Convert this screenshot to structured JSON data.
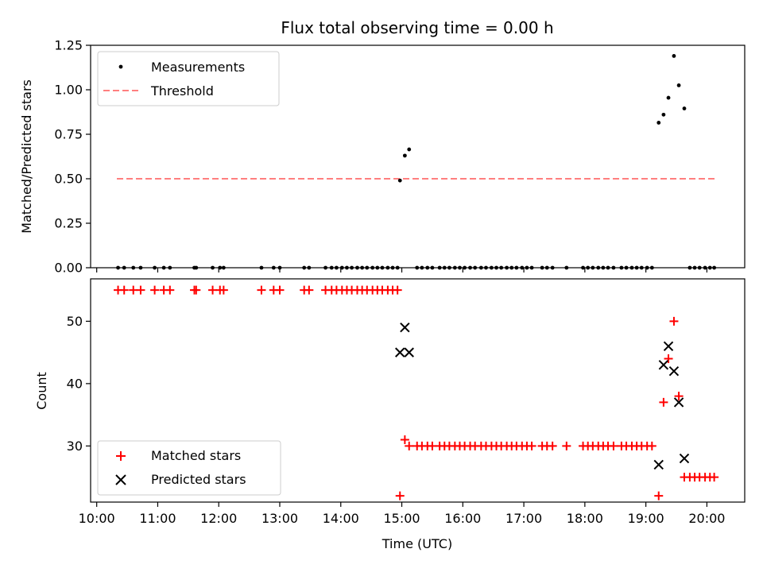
{
  "colors": {
    "measurement": "#000000",
    "threshold": "#ff7f7f",
    "matched": "#ff0000",
    "predicted": "#000000",
    "axis": "#000000",
    "legend_border": "#cccccc"
  },
  "chart_data": [
    {
      "id": "ratio",
      "type": "scatter",
      "title": "Flux total observing time = 0.00 h",
      "xlabel": "",
      "ylabel": "Matched/Predicted stars",
      "x_unit": "hours UTC",
      "xlim": [
        9.9,
        20.62
      ],
      "ylim": [
        0,
        1.25
      ],
      "x_ticks": [
        10,
        11,
        12,
        13,
        14,
        15,
        16,
        17,
        18,
        19,
        20
      ],
      "y_ticks": [
        0.0,
        0.25,
        0.5,
        0.75,
        1.0,
        1.25
      ],
      "y_tick_labels": [
        "0.00",
        "0.25",
        "0.50",
        "0.75",
        "1.00",
        "1.25"
      ],
      "legend": {
        "placement": "upper-left",
        "entries": [
          "Measurements",
          "Threshold"
        ]
      },
      "threshold": {
        "name": "Threshold",
        "y": 0.5,
        "x_range": [
          10.33,
          20.13
        ]
      },
      "series": [
        {
          "name": "Measurements",
          "points": [
            [
              10.35,
              0
            ],
            [
              10.45,
              0
            ],
            [
              10.6,
              0
            ],
            [
              10.72,
              0
            ],
            [
              10.95,
              0
            ],
            [
              11.1,
              0
            ],
            [
              11.2,
              0
            ],
            [
              11.6,
              0
            ],
            [
              11.63,
              0
            ],
            [
              11.9,
              0
            ],
            [
              12.02,
              0
            ],
            [
              12.08,
              0
            ],
            [
              12.7,
              0
            ],
            [
              12.9,
              0
            ],
            [
              13.0,
              0
            ],
            [
              13.4,
              0
            ],
            [
              13.48,
              0
            ],
            [
              13.75,
              0
            ],
            [
              13.85,
              0
            ],
            [
              13.93,
              0
            ],
            [
              14.02,
              0
            ],
            [
              14.1,
              0
            ],
            [
              14.18,
              0
            ],
            [
              14.27,
              0
            ],
            [
              14.35,
              0
            ],
            [
              14.43,
              0
            ],
            [
              14.52,
              0
            ],
            [
              14.6,
              0
            ],
            [
              14.68,
              0
            ],
            [
              14.77,
              0
            ],
            [
              14.85,
              0
            ],
            [
              14.93,
              0
            ],
            [
              14.97,
              0.49
            ],
            [
              15.05,
              0.63
            ],
            [
              15.12,
              0.665
            ],
            [
              15.25,
              0
            ],
            [
              15.33,
              0
            ],
            [
              15.42,
              0
            ],
            [
              15.5,
              0
            ],
            [
              15.62,
              0
            ],
            [
              15.7,
              0
            ],
            [
              15.78,
              0
            ],
            [
              15.87,
              0
            ],
            [
              15.95,
              0
            ],
            [
              16.03,
              0
            ],
            [
              16.12,
              0
            ],
            [
              16.2,
              0
            ],
            [
              16.3,
              0
            ],
            [
              16.38,
              0
            ],
            [
              16.47,
              0
            ],
            [
              16.55,
              0
            ],
            [
              16.63,
              0
            ],
            [
              16.72,
              0
            ],
            [
              16.8,
              0
            ],
            [
              16.88,
              0
            ],
            [
              16.97,
              0
            ],
            [
              17.05,
              0
            ],
            [
              17.13,
              0
            ],
            [
              17.3,
              0
            ],
            [
              17.38,
              0
            ],
            [
              17.47,
              0
            ],
            [
              17.7,
              0
            ],
            [
              17.97,
              0
            ],
            [
              18.05,
              0
            ],
            [
              18.13,
              0
            ],
            [
              18.22,
              0
            ],
            [
              18.3,
              0
            ],
            [
              18.38,
              0
            ],
            [
              18.47,
              0
            ],
            [
              18.6,
              0
            ],
            [
              18.68,
              0
            ],
            [
              18.77,
              0
            ],
            [
              18.85,
              0
            ],
            [
              18.93,
              0
            ],
            [
              19.02,
              0
            ],
            [
              19.1,
              0
            ],
            [
              19.21,
              0.815
            ],
            [
              19.29,
              0.86
            ],
            [
              19.37,
              0.955
            ],
            [
              19.46,
              1.19
            ],
            [
              19.54,
              1.025
            ],
            [
              19.63,
              0.895
            ],
            [
              19.72,
              0
            ],
            [
              19.8,
              0
            ],
            [
              19.88,
              0
            ],
            [
              19.97,
              0
            ],
            [
              20.05,
              0
            ],
            [
              20.12,
              0
            ]
          ]
        }
      ]
    },
    {
      "id": "counts",
      "type": "scatter",
      "title": "",
      "xlabel": "Time (UTC)",
      "ylabel": "Count",
      "x_unit": "hours UTC",
      "xlim": [
        9.9,
        20.62
      ],
      "ylim": [
        21,
        56.8
      ],
      "x_ticks": [
        10,
        11,
        12,
        13,
        14,
        15,
        16,
        17,
        18,
        19,
        20
      ],
      "x_tick_labels": [
        "10:00",
        "11:00",
        "12:00",
        "13:00",
        "14:00",
        "15:00",
        "16:00",
        "17:00",
        "18:00",
        "19:00",
        "20:00"
      ],
      "y_ticks": [
        30,
        40,
        50
      ],
      "y_tick_labels": [
        "30",
        "40",
        "50"
      ],
      "legend": {
        "placement": "lower-left",
        "entries": [
          "Matched stars",
          "Predicted stars"
        ]
      },
      "series": [
        {
          "name": "Matched stars",
          "marker": "plus",
          "points": [
            [
              10.35,
              55
            ],
            [
              10.45,
              55
            ],
            [
              10.6,
              55
            ],
            [
              10.72,
              55
            ],
            [
              10.95,
              55
            ],
            [
              11.1,
              55
            ],
            [
              11.2,
              55
            ],
            [
              11.6,
              55
            ],
            [
              11.63,
              55
            ],
            [
              11.9,
              55
            ],
            [
              12.02,
              55
            ],
            [
              12.08,
              55
            ],
            [
              12.7,
              55
            ],
            [
              12.9,
              55
            ],
            [
              13.0,
              55
            ],
            [
              13.4,
              55
            ],
            [
              13.48,
              55
            ],
            [
              13.75,
              55
            ],
            [
              13.85,
              55
            ],
            [
              13.93,
              55
            ],
            [
              14.02,
              55
            ],
            [
              14.1,
              55
            ],
            [
              14.18,
              55
            ],
            [
              14.27,
              55
            ],
            [
              14.35,
              55
            ],
            [
              14.43,
              55
            ],
            [
              14.52,
              55
            ],
            [
              14.6,
              55
            ],
            [
              14.68,
              55
            ],
            [
              14.77,
              55
            ],
            [
              14.85,
              55
            ],
            [
              14.93,
              55
            ],
            [
              14.97,
              22
            ],
            [
              15.05,
              31
            ],
            [
              15.12,
              30
            ],
            [
              15.25,
              30
            ],
            [
              15.33,
              30
            ],
            [
              15.42,
              30
            ],
            [
              15.5,
              30
            ],
            [
              15.62,
              30
            ],
            [
              15.7,
              30
            ],
            [
              15.78,
              30
            ],
            [
              15.87,
              30
            ],
            [
              15.95,
              30
            ],
            [
              16.03,
              30
            ],
            [
              16.12,
              30
            ],
            [
              16.2,
              30
            ],
            [
              16.3,
              30
            ],
            [
              16.38,
              30
            ],
            [
              16.47,
              30
            ],
            [
              16.55,
              30
            ],
            [
              16.63,
              30
            ],
            [
              16.72,
              30
            ],
            [
              16.8,
              30
            ],
            [
              16.88,
              30
            ],
            [
              16.97,
              30
            ],
            [
              17.05,
              30
            ],
            [
              17.13,
              30
            ],
            [
              17.3,
              30
            ],
            [
              17.38,
              30
            ],
            [
              17.47,
              30
            ],
            [
              17.7,
              30
            ],
            [
              17.97,
              30
            ],
            [
              18.05,
              30
            ],
            [
              18.13,
              30
            ],
            [
              18.22,
              30
            ],
            [
              18.3,
              30
            ],
            [
              18.38,
              30
            ],
            [
              18.47,
              30
            ],
            [
              18.6,
              30
            ],
            [
              18.68,
              30
            ],
            [
              18.77,
              30
            ],
            [
              18.85,
              30
            ],
            [
              18.93,
              30
            ],
            [
              19.02,
              30
            ],
            [
              19.1,
              30
            ],
            [
              19.21,
              22
            ],
            [
              19.29,
              37
            ],
            [
              19.37,
              44
            ],
            [
              19.46,
              50
            ],
            [
              19.54,
              38
            ],
            [
              19.63,
              25
            ],
            [
              19.72,
              25
            ],
            [
              19.8,
              25
            ],
            [
              19.88,
              25
            ],
            [
              19.97,
              25
            ],
            [
              20.05,
              25
            ],
            [
              20.12,
              25
            ]
          ]
        },
        {
          "name": "Predicted stars",
          "marker": "x",
          "points": [
            [
              14.97,
              45
            ],
            [
              15.05,
              49
            ],
            [
              15.12,
              45
            ],
            [
              19.21,
              27
            ],
            [
              19.29,
              43
            ],
            [
              19.37,
              46
            ],
            [
              19.46,
              42
            ],
            [
              19.54,
              37
            ],
            [
              19.63,
              28
            ]
          ]
        }
      ]
    }
  ]
}
